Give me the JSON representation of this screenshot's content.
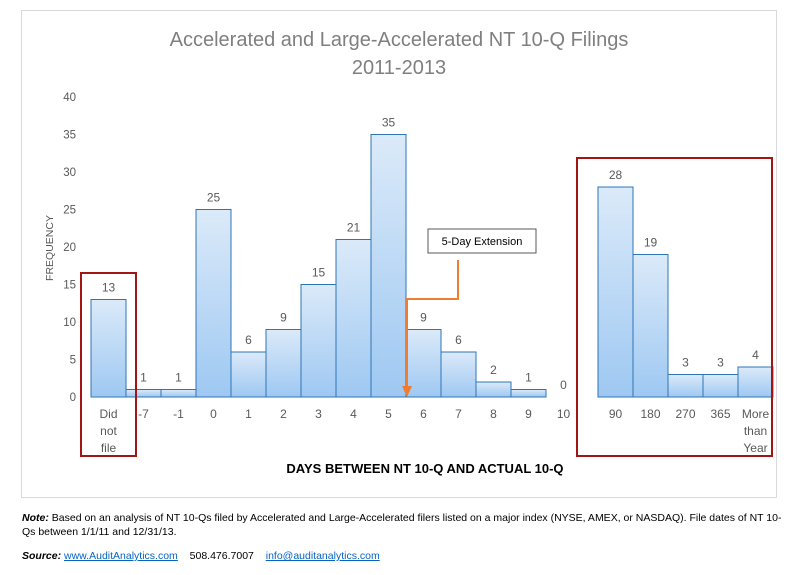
{
  "chart_data": {
    "type": "bar",
    "title_line1": "Accelerated and Large-Accelerated NT 10-Q Filings",
    "title_line2": "2011-2013",
    "xlabel": "DAYS BETWEEN NT 10-Q AND ACTUAL 10-Q",
    "ylabel": "FREQUENCY",
    "ylim": [
      0,
      40
    ],
    "yticks": [
      "0",
      "5",
      "10",
      "15",
      "20",
      "25",
      "30",
      "35",
      "40"
    ],
    "categories": [
      [
        "Did",
        "not",
        "file"
      ],
      [
        "-7"
      ],
      [
        "-1"
      ],
      [
        "0"
      ],
      [
        "1"
      ],
      [
        "2"
      ],
      [
        "3"
      ],
      [
        "4"
      ],
      [
        "5"
      ],
      [
        "6"
      ],
      [
        "7"
      ],
      [
        "8"
      ],
      [
        "9"
      ],
      [
        "10"
      ],
      [
        "90"
      ],
      [
        "180"
      ],
      [
        "270"
      ],
      [
        "365"
      ],
      [
        "More",
        "than",
        "Year"
      ]
    ],
    "values": [
      13,
      1,
      1,
      25,
      6,
      9,
      15,
      21,
      35,
      9,
      6,
      2,
      1,
      0,
      28,
      19,
      3,
      3,
      4
    ],
    "data_labels": [
      "13",
      "1",
      "1",
      "25",
      "6",
      "9",
      "15",
      "21",
      "35",
      "9",
      "6",
      "2",
      "1",
      "0",
      "28",
      "19",
      "3",
      "3",
      "4"
    ],
    "annotation": "5-Day Extension",
    "colors": {
      "bar_top": "#dbeaf9",
      "bar_bottom": "#9ec8f2",
      "bar_border": "#2e75b6",
      "highlight_box": "#a31515",
      "arrow": "#ed7d31",
      "title": "#7f7f7f",
      "axis_text": "#595959"
    },
    "grid": false,
    "legend": "none"
  },
  "footnote": {
    "note_label": "Note:",
    "note_text": "Based on an analysis of NT 10-Qs filed by Accelerated and Large-Accelerated filers listed on a major index (NYSE, AMEX, or NASDAQ). File dates of NT 10-Qs between 1/1/11 and 12/31/13.",
    "source_label": "Source:",
    "source_link": "www.AuditAnalytics.com",
    "phone": "508.476.7007",
    "email": "info@auditanalytics.com"
  }
}
